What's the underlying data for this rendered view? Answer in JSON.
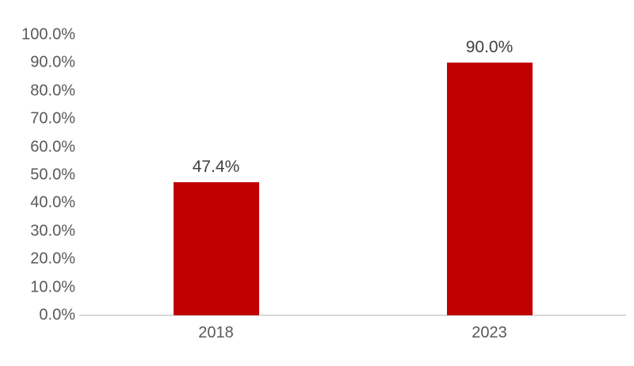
{
  "chart_data": {
    "type": "bar",
    "title": "",
    "xlabel": "",
    "ylabel": "",
    "categories": [
      "2018",
      "2023"
    ],
    "values": [
      47.4,
      90.0
    ],
    "value_labels": [
      "47.4%",
      "90.0%"
    ],
    "ytick_labels": [
      "100.0%",
      "90.0%",
      "80.0%",
      "70.0%",
      "60.0%",
      "50.0%",
      "40.0%",
      "30.0%",
      "20.0%",
      "10.0%",
      "0.0%"
    ],
    "ylim": [
      0,
      100
    ],
    "grid": "off",
    "legend": "none",
    "colors": {
      "bar": "#c00000",
      "axis_text": "#595959",
      "value_label_text": "#404040",
      "baseline": "#d9d9d9",
      "background": "#ffffff"
    }
  }
}
